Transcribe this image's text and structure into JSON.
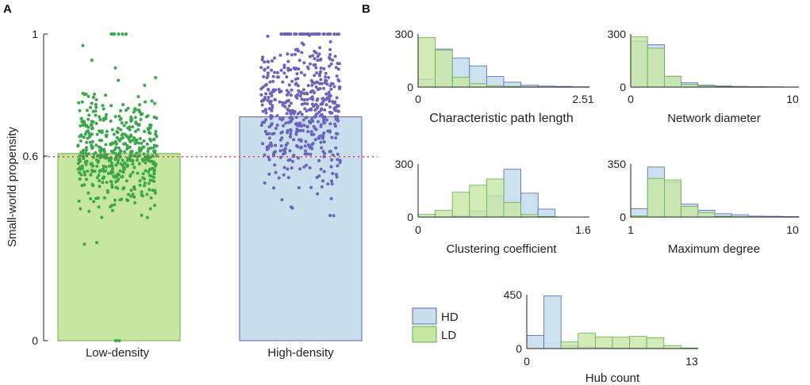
{
  "panel_a": {
    "label": "A",
    "ylabel": "Small-world propensity",
    "y_ticks": [
      "0",
      "0.6",
      "1"
    ],
    "categories": [
      "Low-density",
      "High-density"
    ],
    "colors": {
      "ld_fill": "#c6e6a2",
      "ld_edge": "#5fb34a",
      "ld_point": "#3aa84a",
      "hd_fill": "#c9dfee",
      "hd_edge": "#5a62b0",
      "hd_point": "#6b63bd",
      "ref_line": "#e03030"
    }
  },
  "panel_b": {
    "label": "B",
    "legend": [
      {
        "label": "HD",
        "color": "#c9dfee"
      },
      {
        "label": "LD",
        "color": "#c6e6a2"
      }
    ]
  },
  "chart_data": [
    {
      "type": "bar",
      "title": "",
      "xlabel": "",
      "ylabel": "Small-world propensity",
      "categories": [
        "Low-density",
        "High-density"
      ],
      "values": [
        0.61,
        0.73
      ],
      "ylim": [
        0,
        1
      ],
      "y_ticks": [
        0,
        0.6,
        1
      ],
      "reference_line": 0.6,
      "jitter_points": {
        "Low-density": {
          "count": 500,
          "mean": 0.62,
          "sd": 0.09,
          "min": 0.29,
          "max": 1.0,
          "extra_at_1": 7,
          "extra_at_0": 3
        },
        "High-density": {
          "count": 520,
          "mean": 0.75,
          "sd": 0.12,
          "min": 0.38,
          "max": 1.0,
          "extra_at_1": 30
        }
      }
    },
    {
      "type": "bar",
      "xlabel": "Characteristic path length",
      "xlim": [
        0,
        2.51
      ],
      "x_ticks": [
        "0",
        "2.51"
      ],
      "ylim": [
        0,
        300
      ],
      "y_ticks": [
        "0",
        "300"
      ],
      "series": [
        {
          "name": "HD",
          "values": [
            45,
            215,
            165,
            120,
            60,
            28,
            12,
            6,
            4,
            2
          ]
        },
        {
          "name": "LD",
          "values": [
            280,
            210,
            55,
            20,
            8,
            4,
            2,
            1,
            0,
            0
          ]
        }
      ]
    },
    {
      "type": "bar",
      "xlabel": "Network diameter",
      "xlim": [
        0,
        10
      ],
      "x_ticks": [
        "0",
        "10"
      ],
      "ylim": [
        0,
        300
      ],
      "y_ticks": [
        "0",
        "300"
      ],
      "series": [
        {
          "name": "HD",
          "values": [
            260,
            240,
            60,
            25,
            12,
            7,
            4,
            3,
            2,
            1
          ]
        },
        {
          "name": "LD",
          "values": [
            285,
            220,
            62,
            15,
            6,
            3,
            1,
            0,
            0,
            0
          ]
        }
      ]
    },
    {
      "type": "bar",
      "xlabel": "Clustering coefficient",
      "xlim": [
        0,
        1.6
      ],
      "x_ticks": [
        "0",
        "1.6"
      ],
      "ylim": [
        0,
        300
      ],
      "y_ticks": [
        "0",
        "300"
      ],
      "series": [
        {
          "name": "HD",
          "values": [
            0,
            0,
            5,
            35,
            120,
            270,
            135,
            45,
            0,
            0
          ]
        },
        {
          "name": "LD",
          "values": [
            15,
            38,
            140,
            180,
            215,
            82,
            14,
            3,
            0,
            0
          ]
        }
      ]
    },
    {
      "type": "bar",
      "xlabel": "Maximum degree",
      "xlim": [
        1,
        10
      ],
      "x_ticks": [
        "1",
        "10"
      ],
      "ylim": [
        0,
        350
      ],
      "y_ticks": [
        "0",
        "350"
      ],
      "series": [
        {
          "name": "HD",
          "values": [
            55,
            330,
            230,
            85,
            45,
            22,
            15,
            6,
            5,
            3
          ]
        },
        {
          "name": "LD",
          "values": [
            8,
            255,
            245,
            70,
            30,
            5,
            2,
            0,
            0,
            0
          ]
        }
      ]
    },
    {
      "type": "bar",
      "xlabel": "Hub count",
      "xlim": [
        0,
        13
      ],
      "x_ticks": [
        "0",
        "13"
      ],
      "ylim": [
        0,
        450
      ],
      "y_ticks": [
        "0",
        "450"
      ],
      "series": [
        {
          "name": "HD",
          "values": [
            110,
            440,
            25,
            12,
            8,
            5,
            4,
            3,
            0,
            0
          ]
        },
        {
          "name": "LD",
          "values": [
            0,
            0,
            55,
            128,
            98,
            95,
            102,
            90,
            25,
            5
          ]
        }
      ]
    }
  ]
}
